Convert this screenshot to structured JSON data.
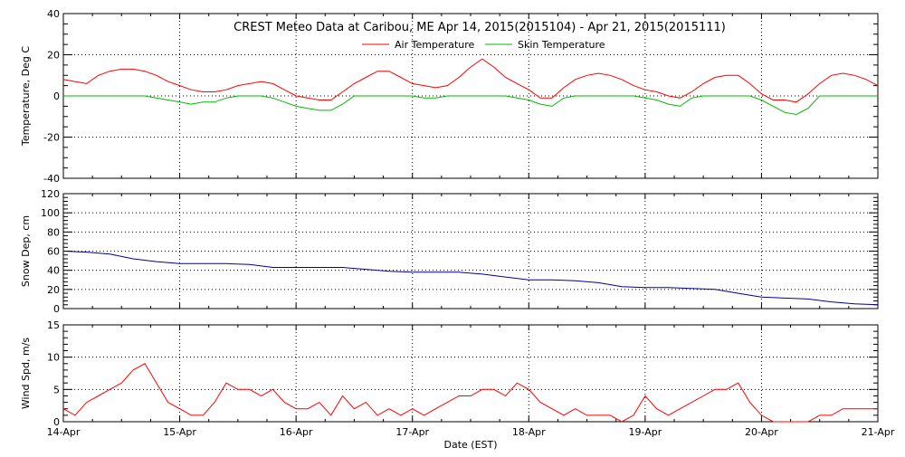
{
  "chart_data": [
    {
      "type": "line",
      "title": "CREST Meteo Data at Caribou, ME   Apr 14, 2015(2015104) - Apr 21, 2015(2015111)",
      "xlabel": "",
      "ylabel": "Temperature, Deg C",
      "ylim": [
        -40,
        40
      ],
      "yticks": [
        -40,
        -20,
        0,
        20,
        40
      ],
      "xlim": [
        "2015-04-14",
        "2015-04-21"
      ],
      "grid": true,
      "legend": "top-center",
      "series": [
        {
          "name": "Air Temperature",
          "color": "#ff0000",
          "x": [
            14.0,
            14.1,
            14.2,
            14.3,
            14.4,
            14.5,
            14.6,
            14.7,
            14.8,
            14.9,
            15.0,
            15.1,
            15.2,
            15.3,
            15.4,
            15.5,
            15.6,
            15.7,
            15.8,
            15.9,
            16.0,
            16.1,
            16.2,
            16.3,
            16.4,
            16.5,
            16.6,
            16.7,
            16.8,
            16.9,
            17.0,
            17.1,
            17.2,
            17.3,
            17.4,
            17.5,
            17.6,
            17.7,
            17.8,
            17.9,
            18.0,
            18.1,
            18.2,
            18.3,
            18.4,
            18.5,
            18.6,
            18.7,
            18.8,
            18.9,
            19.0,
            19.1,
            19.2,
            19.3,
            19.4,
            19.5,
            19.6,
            19.7,
            19.8,
            19.9,
            20.0,
            20.1,
            20.2,
            20.3,
            20.4,
            20.5,
            20.6,
            20.7,
            20.8,
            20.9,
            21.0
          ],
          "y": [
            8,
            7,
            6,
            10,
            12,
            13,
            13,
            12,
            10,
            7,
            5,
            3,
            2,
            2,
            3,
            5,
            6,
            7,
            6,
            3,
            0,
            -1,
            -2,
            -2,
            2,
            6,
            9,
            12,
            12,
            9,
            6,
            5,
            4,
            5,
            9,
            14,
            18,
            14,
            9,
            6,
            3,
            -1,
            -1,
            4,
            8,
            10,
            11,
            10,
            8,
            5,
            3,
            2,
            0,
            -1,
            2,
            6,
            9,
            10,
            10,
            6,
            1,
            -2,
            -2,
            -3,
            1,
            6,
            10,
            11,
            10,
            8,
            5
          ]
        },
        {
          "name": "Skin Temperature",
          "color": "#00bb00",
          "x": [
            14.0,
            14.1,
            14.2,
            14.3,
            14.4,
            14.5,
            14.6,
            14.7,
            14.8,
            14.9,
            15.0,
            15.1,
            15.2,
            15.3,
            15.4,
            15.5,
            15.6,
            15.7,
            15.8,
            15.9,
            16.0,
            16.1,
            16.2,
            16.3,
            16.4,
            16.5,
            16.6,
            16.7,
            16.8,
            16.9,
            17.0,
            17.1,
            17.2,
            17.3,
            17.4,
            17.5,
            17.6,
            17.7,
            17.8,
            17.9,
            18.0,
            18.1,
            18.2,
            18.3,
            18.4,
            18.5,
            18.6,
            18.7,
            18.8,
            18.9,
            19.0,
            19.1,
            19.2,
            19.3,
            19.4,
            19.5,
            19.6,
            19.7,
            19.8,
            19.9,
            20.0,
            20.1,
            20.2,
            20.3,
            20.4,
            20.5,
            20.6,
            20.7,
            20.8,
            20.9,
            21.0
          ],
          "y": [
            0,
            0,
            0,
            0,
            0,
            0,
            0,
            0,
            -1,
            -2,
            -3,
            -4,
            -3,
            -3,
            -1,
            0,
            0,
            0,
            -1,
            -3,
            -5,
            -6,
            -7,
            -7,
            -4,
            0,
            0,
            0,
            0,
            0,
            0,
            -1,
            -1,
            0,
            0,
            0,
            0,
            0,
            0,
            -1,
            -2,
            -4,
            -5,
            -1,
            0,
            0,
            0,
            0,
            0,
            0,
            -1,
            -2,
            -4,
            -5,
            -1,
            0,
            0,
            0,
            0,
            0,
            -2,
            -5,
            -8,
            -9,
            -6,
            0,
            0,
            0,
            0,
            0,
            0
          ]
        }
      ]
    },
    {
      "type": "line",
      "title": "",
      "xlabel": "",
      "ylabel": "Snow Dep, cm",
      "ylim": [
        0,
        120
      ],
      "yticks": [
        0,
        20,
        40,
        60,
        80,
        100,
        120
      ],
      "xlim": [
        "2015-04-14",
        "2015-04-21"
      ],
      "grid": true,
      "series": [
        {
          "name": "",
          "color": "#000099",
          "x": [
            14.0,
            14.2,
            14.4,
            14.6,
            14.8,
            15.0,
            15.2,
            15.4,
            15.6,
            15.8,
            16.0,
            16.2,
            16.4,
            16.6,
            16.8,
            17.0,
            17.2,
            17.4,
            17.6,
            17.8,
            18.0,
            18.2,
            18.4,
            18.6,
            18.8,
            19.0,
            19.2,
            19.4,
            19.6,
            19.8,
            20.0,
            20.2,
            20.4,
            20.6,
            20.8,
            21.0
          ],
          "y": [
            60,
            59,
            57,
            52,
            49,
            47,
            47,
            47,
            46,
            43,
            43,
            43,
            43,
            41,
            39,
            38,
            38,
            38,
            36,
            33,
            30,
            30,
            29,
            27,
            23,
            22,
            22,
            21,
            20,
            16,
            12,
            11,
            10,
            7,
            5,
            4
          ]
        }
      ]
    },
    {
      "type": "line",
      "title": "",
      "xlabel": "Date (EST)",
      "ylabel": "Wind Spd, m/s",
      "ylim": [
        0,
        15
      ],
      "yticks": [
        0,
        5,
        10,
        15
      ],
      "xlim": [
        "2015-04-14",
        "2015-04-21"
      ],
      "xticks": [
        "14-Apr",
        "15-Apr",
        "16-Apr",
        "17-Apr",
        "18-Apr",
        "19-Apr",
        "20-Apr",
        "21-Apr"
      ],
      "grid": true,
      "series": [
        {
          "name": "",
          "color": "#ff0000",
          "x": [
            14.0,
            14.1,
            14.2,
            14.3,
            14.4,
            14.5,
            14.6,
            14.7,
            14.8,
            14.9,
            15.0,
            15.1,
            15.2,
            15.3,
            15.4,
            15.5,
            15.6,
            15.7,
            15.8,
            15.9,
            16.0,
            16.1,
            16.2,
            16.3,
            16.4,
            16.5,
            16.6,
            16.7,
            16.8,
            16.9,
            17.0,
            17.1,
            17.2,
            17.3,
            17.4,
            17.5,
            17.6,
            17.7,
            17.8,
            17.9,
            18.0,
            18.1,
            18.2,
            18.3,
            18.4,
            18.5,
            18.6,
            18.7,
            18.8,
            18.9,
            19.0,
            19.1,
            19.2,
            19.3,
            19.4,
            19.5,
            19.6,
            19.7,
            19.8,
            19.9,
            20.0,
            20.1,
            20.2,
            20.3,
            20.4,
            20.5,
            20.6,
            20.7,
            20.8,
            20.9,
            21.0
          ],
          "y": [
            2,
            1,
            3,
            4,
            5,
            6,
            8,
            9,
            6,
            3,
            2,
            1,
            1,
            3,
            6,
            5,
            5,
            4,
            5,
            3,
            2,
            2,
            3,
            1,
            4,
            2,
            3,
            1,
            2,
            1,
            2,
            1,
            2,
            3,
            4,
            4,
            5,
            5,
            4,
            6,
            5,
            3,
            2,
            1,
            2,
            1,
            1,
            1,
            0,
            1,
            4,
            2,
            1,
            2,
            3,
            4,
            5,
            5,
            6,
            3,
            1,
            0,
            0,
            0,
            0,
            1,
            1,
            2,
            2,
            2,
            2
          ]
        }
      ]
    }
  ]
}
